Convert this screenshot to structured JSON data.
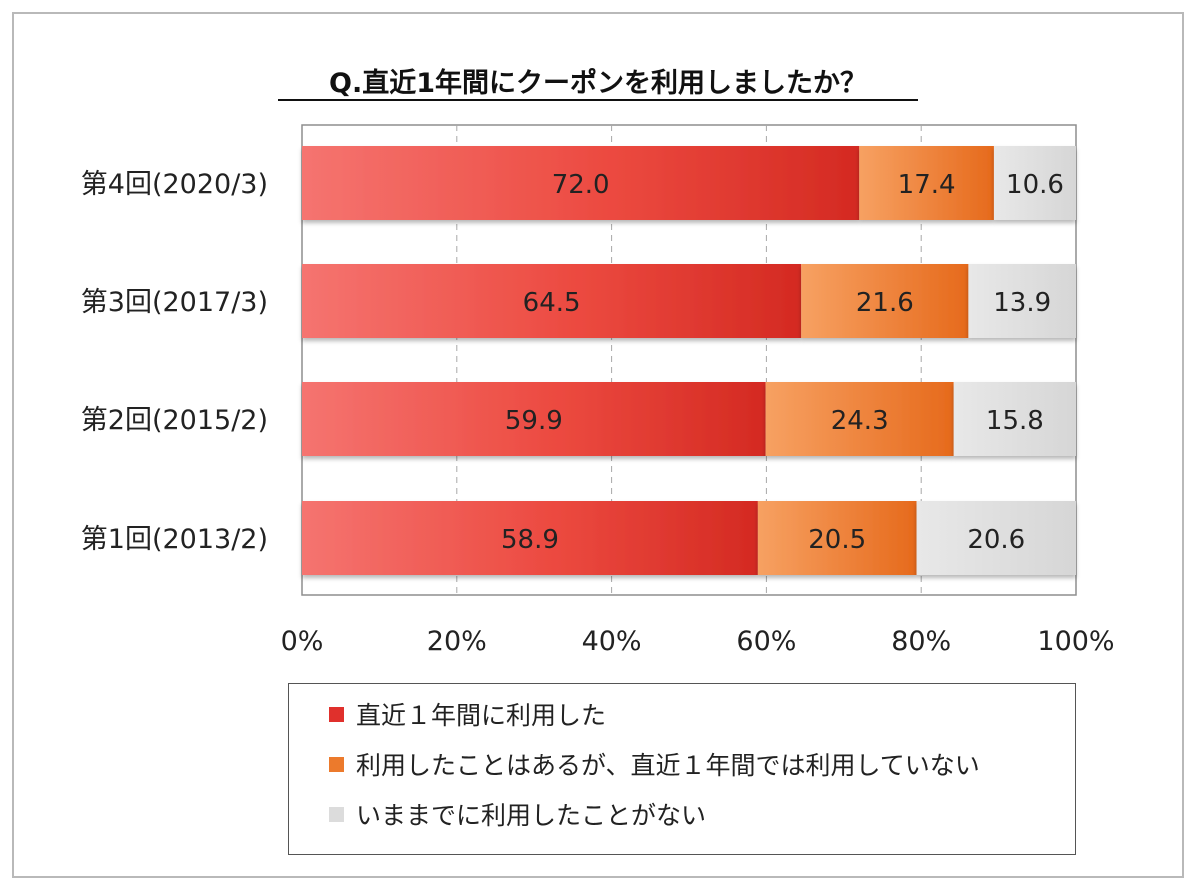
{
  "chart_data": {
    "type": "bar",
    "orientation": "horizontal",
    "stacked": true,
    "title": "Q.直近1年間にクーポンを利用しましたか？",
    "categories": [
      "第4回(2020/3)",
      "第3回(2017/3)",
      "第2回(2015/2)",
      "第1回(2013/2)"
    ],
    "series": [
      {
        "name": "直近１年間に利用した",
        "color": "#e0302c",
        "values": [
          72.0,
          64.5,
          59.9,
          58.9
        ]
      },
      {
        "name": "利用したことはあるが、直近１年間では利用していない",
        "color": "#ec7a2c",
        "values": [
          17.4,
          21.6,
          24.3,
          20.5
        ]
      },
      {
        "name": "いままでに利用したことがない",
        "color": "#dcdcdc",
        "values": [
          10.6,
          13.9,
          15.8,
          20.6
        ]
      }
    ],
    "value_labels": [
      [
        "72.0",
        "17.4",
        "10.6"
      ],
      [
        "64.5",
        "21.6",
        "13.9"
      ],
      [
        "59.9",
        "24.3",
        "15.8"
      ],
      [
        "58.9",
        "20.5",
        "20.6"
      ]
    ],
    "xticks": [
      "0%",
      "20%",
      "40%",
      "60%",
      "80%",
      "100%"
    ],
    "xlim": [
      0,
      100
    ],
    "grid": "vertical-dashed",
    "legend_position": "bottom"
  }
}
